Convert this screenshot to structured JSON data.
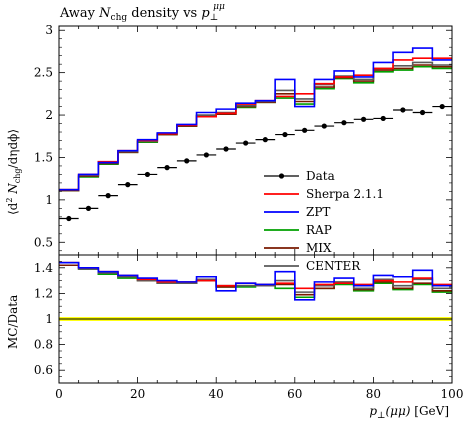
{
  "title": {
    "prefix": "Away ",
    "N": "N",
    "N_sub": "chg",
    "mid": " density vs ",
    "p": "p",
    "p_sub": "⊥",
    "p_sup": "μμ"
  },
  "ylabel_main": "⟨d² N_chg / dη dϕ⟩",
  "ylabel_main_parts": {
    "open": "⟨d",
    "two": "2",
    "N": " N",
    "sub": "chg",
    "rest": "/dηdϕ⟩"
  },
  "ylabel_ratio": "MC/Data",
  "xlabel": "p⊥(μμ) [GeV]",
  "xlabel_parts": {
    "p": "p",
    "sub": "⊥",
    "mid": "(μμ)",
    "unit": " [GeV]"
  },
  "colors": {
    "data": "#000000",
    "sherpa": "#ff0000",
    "zpt": "#0000ff",
    "rap": "#00a000",
    "mix": "#7a1a00",
    "center": "#5a5a5a",
    "band": "#ffff00"
  },
  "chart_data": [
    {
      "type": "line",
      "title": "Away N_chg density vs p_⊥^μμ",
      "xlabel": "",
      "ylabel": "⟨d²N_chg/dηdϕ⟩",
      "xlim": [
        0,
        100
      ],
      "ylim": [
        0.35,
        3.05
      ],
      "x_ticks": [
        0,
        20,
        40,
        60,
        80,
        100
      ],
      "y_ticks": [
        0.5,
        1,
        1.5,
        2,
        2.5,
        3
      ],
      "y_tick_labels": [
        "0.5",
        "1",
        "1.5",
        "2",
        "2.5",
        "3"
      ],
      "bin_edges": [
        0,
        5,
        10,
        15,
        20,
        25,
        30,
        35,
        40,
        45,
        50,
        55,
        60,
        65,
        70,
        75,
        80,
        85,
        90,
        95,
        100
      ],
      "legend_placement": "center-right",
      "series": [
        {
          "name": "Data",
          "key": "data",
          "style": "points",
          "values": [
            0.78,
            0.9,
            1.05,
            1.18,
            1.3,
            1.38,
            1.46,
            1.53,
            1.6,
            1.67,
            1.71,
            1.77,
            1.82,
            1.87,
            1.91,
            1.95,
            1.96,
            2.06,
            2.03,
            2.1
          ]
        },
        {
          "name": "Sherpa 2.1.1",
          "key": "sherpa",
          "style": "hist",
          "values": [
            1.12,
            1.3,
            1.45,
            1.58,
            1.7,
            1.78,
            1.88,
            1.98,
            2.02,
            2.13,
            2.17,
            2.22,
            2.25,
            2.37,
            2.45,
            2.47,
            2.55,
            2.65,
            2.67,
            2.67
          ]
        },
        {
          "name": "ZPT",
          "key": "zpt",
          "style": "hist",
          "values": [
            1.12,
            1.3,
            1.44,
            1.58,
            1.71,
            1.79,
            1.89,
            2.03,
            2.07,
            2.14,
            2.17,
            2.42,
            2.1,
            2.42,
            2.52,
            2.45,
            2.62,
            2.74,
            2.79,
            2.65
          ]
        },
        {
          "name": "RAP",
          "key": "rap",
          "style": "hist",
          "values": [
            1.11,
            1.27,
            1.42,
            1.56,
            1.68,
            1.77,
            1.87,
            1.99,
            2.01,
            2.09,
            2.15,
            2.2,
            2.13,
            2.31,
            2.43,
            2.38,
            2.51,
            2.53,
            2.57,
            2.55
          ]
        },
        {
          "name": "MIX",
          "key": "mix",
          "style": "hist",
          "values": [
            1.11,
            1.28,
            1.43,
            1.56,
            1.69,
            1.77,
            1.87,
            1.99,
            2.01,
            2.1,
            2.15,
            2.25,
            2.16,
            2.33,
            2.44,
            2.4,
            2.53,
            2.55,
            2.59,
            2.57
          ]
        },
        {
          "name": "CENTER",
          "key": "center",
          "style": "hist",
          "values": [
            1.12,
            1.29,
            1.44,
            1.57,
            1.69,
            1.78,
            1.88,
            2.0,
            2.03,
            2.11,
            2.16,
            2.29,
            2.19,
            2.36,
            2.46,
            2.42,
            2.55,
            2.58,
            2.62,
            2.59
          ]
        }
      ]
    },
    {
      "type": "line",
      "title": "",
      "xlabel": "p_⊥(μμ) [GeV]",
      "ylabel": "MC/Data",
      "xlim": [
        0,
        100
      ],
      "ylim": [
        0.5,
        1.5
      ],
      "x_ticks": [
        0,
        20,
        40,
        60,
        80,
        100
      ],
      "x_tick_labels": [
        "0",
        "20",
        "40",
        "60",
        "80",
        "100"
      ],
      "y_ticks": [
        0.6,
        0.8,
        1,
        1.2,
        1.4
      ],
      "y_tick_labels": [
        "0.6",
        "0.8",
        "1",
        "1.2",
        "1.4"
      ],
      "bin_edges": [
        0,
        5,
        10,
        15,
        20,
        25,
        30,
        35,
        40,
        45,
        50,
        55,
        60,
        65,
        70,
        75,
        80,
        85,
        90,
        95,
        100
      ],
      "reference": 1.0,
      "band": [
        0.985,
        1.015
      ],
      "series": [
        {
          "name": "Sherpa 2.1.1",
          "key": "sherpa",
          "values": [
            1.44,
            1.4,
            1.37,
            1.34,
            1.31,
            1.29,
            1.29,
            1.3,
            1.26,
            1.28,
            1.27,
            1.28,
            1.24,
            1.27,
            1.28,
            1.27,
            1.3,
            1.29,
            1.32,
            1.27
          ]
        },
        {
          "name": "ZPT",
          "key": "zpt",
          "values": [
            1.44,
            1.4,
            1.37,
            1.34,
            1.32,
            1.3,
            1.29,
            1.33,
            1.22,
            1.28,
            1.27,
            1.37,
            1.15,
            1.29,
            1.32,
            1.26,
            1.34,
            1.33,
            1.38,
            1.26
          ]
        },
        {
          "name": "RAP",
          "key": "rap",
          "values": [
            1.42,
            1.39,
            1.35,
            1.32,
            1.3,
            1.28,
            1.28,
            1.3,
            1.25,
            1.25,
            1.26,
            1.24,
            1.17,
            1.24,
            1.27,
            1.22,
            1.28,
            1.23,
            1.27,
            1.21
          ]
        },
        {
          "name": "MIX",
          "key": "mix",
          "values": [
            1.42,
            1.4,
            1.36,
            1.33,
            1.3,
            1.28,
            1.28,
            1.3,
            1.25,
            1.26,
            1.26,
            1.27,
            1.19,
            1.24,
            1.28,
            1.23,
            1.29,
            1.24,
            1.28,
            1.22
          ]
        },
        {
          "name": "CENTER",
          "key": "center",
          "values": [
            1.44,
            1.39,
            1.36,
            1.33,
            1.3,
            1.28,
            1.28,
            1.31,
            1.26,
            1.26,
            1.26,
            1.3,
            1.21,
            1.26,
            1.29,
            1.24,
            1.31,
            1.26,
            1.31,
            1.24
          ]
        }
      ]
    }
  ]
}
